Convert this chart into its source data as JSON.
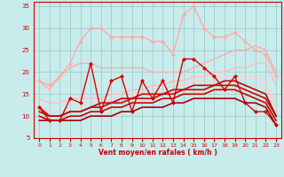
{
  "xlabel": "Vent moyen/en rafales ( km/h )",
  "xlim": [
    -0.5,
    23.5
  ],
  "ylim": [
    5,
    36
  ],
  "yticks": [
    5,
    10,
    15,
    20,
    25,
    30,
    35
  ],
  "xticks": [
    0,
    1,
    2,
    3,
    4,
    5,
    6,
    7,
    8,
    9,
    10,
    11,
    12,
    13,
    14,
    15,
    16,
    17,
    18,
    19,
    20,
    21,
    22,
    23
  ],
  "bg_color": "#c8ecec",
  "grid_color": "#a0cccc",
  "series": [
    {
      "x": [
        0,
        1,
        2,
        3,
        4,
        5,
        6,
        7,
        8,
        9,
        10,
        11,
        12,
        13,
        14,
        15,
        16,
        17,
        18,
        19,
        20,
        21,
        22,
        23
      ],
      "y": [
        18,
        17,
        19,
        22,
        27,
        30,
        30,
        28,
        28,
        28,
        28,
        27,
        27,
        24,
        33,
        35,
        30,
        28,
        28,
        29,
        27,
        25,
        24,
        19
      ],
      "color": "#ffaaaa",
      "lw": 1.0,
      "marker": "D",
      "marker_size": 2.0
    },
    {
      "x": [
        0,
        1,
        2,
        3,
        4,
        5,
        6,
        7,
        8,
        9,
        10,
        11,
        12,
        13,
        14,
        15,
        16,
        17,
        18,
        19,
        20,
        21,
        22,
        23
      ],
      "y": [
        18,
        16,
        19,
        21,
        22,
        22,
        21,
        21,
        21,
        21,
        21,
        20,
        20,
        20,
        20,
        21,
        22,
        23,
        24,
        25,
        25,
        26,
        25,
        20
      ],
      "color": "#ffaaaa",
      "lw": 1.0,
      "marker": null
    },
    {
      "x": [
        0,
        1,
        2,
        3,
        4,
        5,
        6,
        7,
        8,
        9,
        10,
        11,
        12,
        13,
        14,
        15,
        16,
        17,
        18,
        19,
        20,
        21,
        22,
        23
      ],
      "y": [
        14,
        13,
        13,
        14,
        14,
        14,
        14,
        15,
        15,
        16,
        16,
        17,
        17,
        18,
        18,
        19,
        19,
        20,
        20,
        21,
        21,
        22,
        22,
        17
      ],
      "color": "#ffbbbb",
      "lw": 1.0,
      "marker": null
    },
    {
      "x": [
        0,
        1,
        2,
        3,
        4,
        5,
        6,
        7,
        8,
        9,
        10,
        11,
        12,
        13,
        14,
        15,
        16,
        17,
        18,
        19,
        20,
        21,
        22,
        23
      ],
      "y": [
        12,
        11,
        11,
        12,
        12,
        13,
        13,
        14,
        14,
        15,
        15,
        16,
        16,
        17,
        17,
        18,
        18,
        18,
        19,
        19,
        19,
        19,
        18,
        13
      ],
      "color": "#ffcccc",
      "lw": 1.0,
      "marker": null
    },
    {
      "x": [
        0,
        1,
        2,
        3,
        4,
        5,
        6,
        7,
        8,
        9,
        10,
        11,
        12,
        13,
        14,
        15,
        16,
        17,
        18,
        19,
        20,
        21,
        22,
        23
      ],
      "y": [
        10,
        9,
        9,
        10,
        10,
        11,
        11,
        12,
        12,
        13,
        13,
        14,
        14,
        14,
        15,
        15,
        16,
        16,
        17,
        17,
        17,
        17,
        17,
        12
      ],
      "color": "#ffcccc",
      "lw": 1.0,
      "marker": null
    },
    {
      "x": [
        0,
        1,
        2,
        3,
        4,
        5,
        6,
        7,
        8,
        9,
        10,
        11,
        12,
        13,
        14,
        15,
        16,
        17,
        18,
        19,
        20,
        21,
        22,
        23
      ],
      "y": [
        12,
        9,
        9,
        14,
        13,
        22,
        11,
        18,
        19,
        11,
        18,
        14,
        18,
        13,
        23,
        23,
        21,
        19,
        16,
        19,
        13,
        11,
        11,
        8
      ],
      "color": "#dd0000",
      "lw": 1.0,
      "marker": "D",
      "marker_size": 2.0
    },
    {
      "x": [
        0,
        1,
        2,
        3,
        4,
        5,
        6,
        7,
        8,
        9,
        10,
        11,
        12,
        13,
        14,
        15,
        16,
        17,
        18,
        19,
        20,
        21,
        22,
        23
      ],
      "y": [
        9,
        9,
        9,
        9,
        9,
        10,
        10,
        10,
        11,
        11,
        12,
        12,
        12,
        13,
        13,
        14,
        14,
        14,
        14,
        14,
        13,
        13,
        12,
        8
      ],
      "color": "#aa0000",
      "lw": 1.2,
      "marker": null
    },
    {
      "x": [
        0,
        1,
        2,
        3,
        4,
        5,
        6,
        7,
        8,
        9,
        10,
        11,
        12,
        13,
        14,
        15,
        16,
        17,
        18,
        19,
        20,
        21,
        22,
        23
      ],
      "y": [
        10,
        9,
        9,
        10,
        10,
        11,
        11,
        12,
        12,
        13,
        13,
        13,
        14,
        14,
        15,
        15,
        15,
        16,
        16,
        16,
        15,
        14,
        13,
        9
      ],
      "color": "#cc0000",
      "lw": 1.2,
      "marker": null
    },
    {
      "x": [
        0,
        1,
        2,
        3,
        4,
        5,
        6,
        7,
        8,
        9,
        10,
        11,
        12,
        13,
        14,
        15,
        16,
        17,
        18,
        19,
        20,
        21,
        22,
        23
      ],
      "y": [
        11,
        10,
        10,
        11,
        11,
        12,
        12,
        13,
        13,
        14,
        14,
        14,
        15,
        15,
        16,
        16,
        16,
        17,
        17,
        17,
        16,
        15,
        14,
        10
      ],
      "color": "#cc0000",
      "lw": 1.2,
      "marker": null
    },
    {
      "x": [
        0,
        1,
        2,
        3,
        4,
        5,
        6,
        7,
        8,
        9,
        10,
        11,
        12,
        13,
        14,
        15,
        16,
        17,
        18,
        19,
        20,
        21,
        22,
        23
      ],
      "y": [
        12,
        10,
        10,
        11,
        11,
        12,
        13,
        13,
        14,
        14,
        15,
        15,
        15,
        16,
        16,
        17,
        17,
        17,
        18,
        18,
        17,
        16,
        15,
        10
      ],
      "color": "#cc0000",
      "lw": 1.2,
      "marker": null
    }
  ]
}
